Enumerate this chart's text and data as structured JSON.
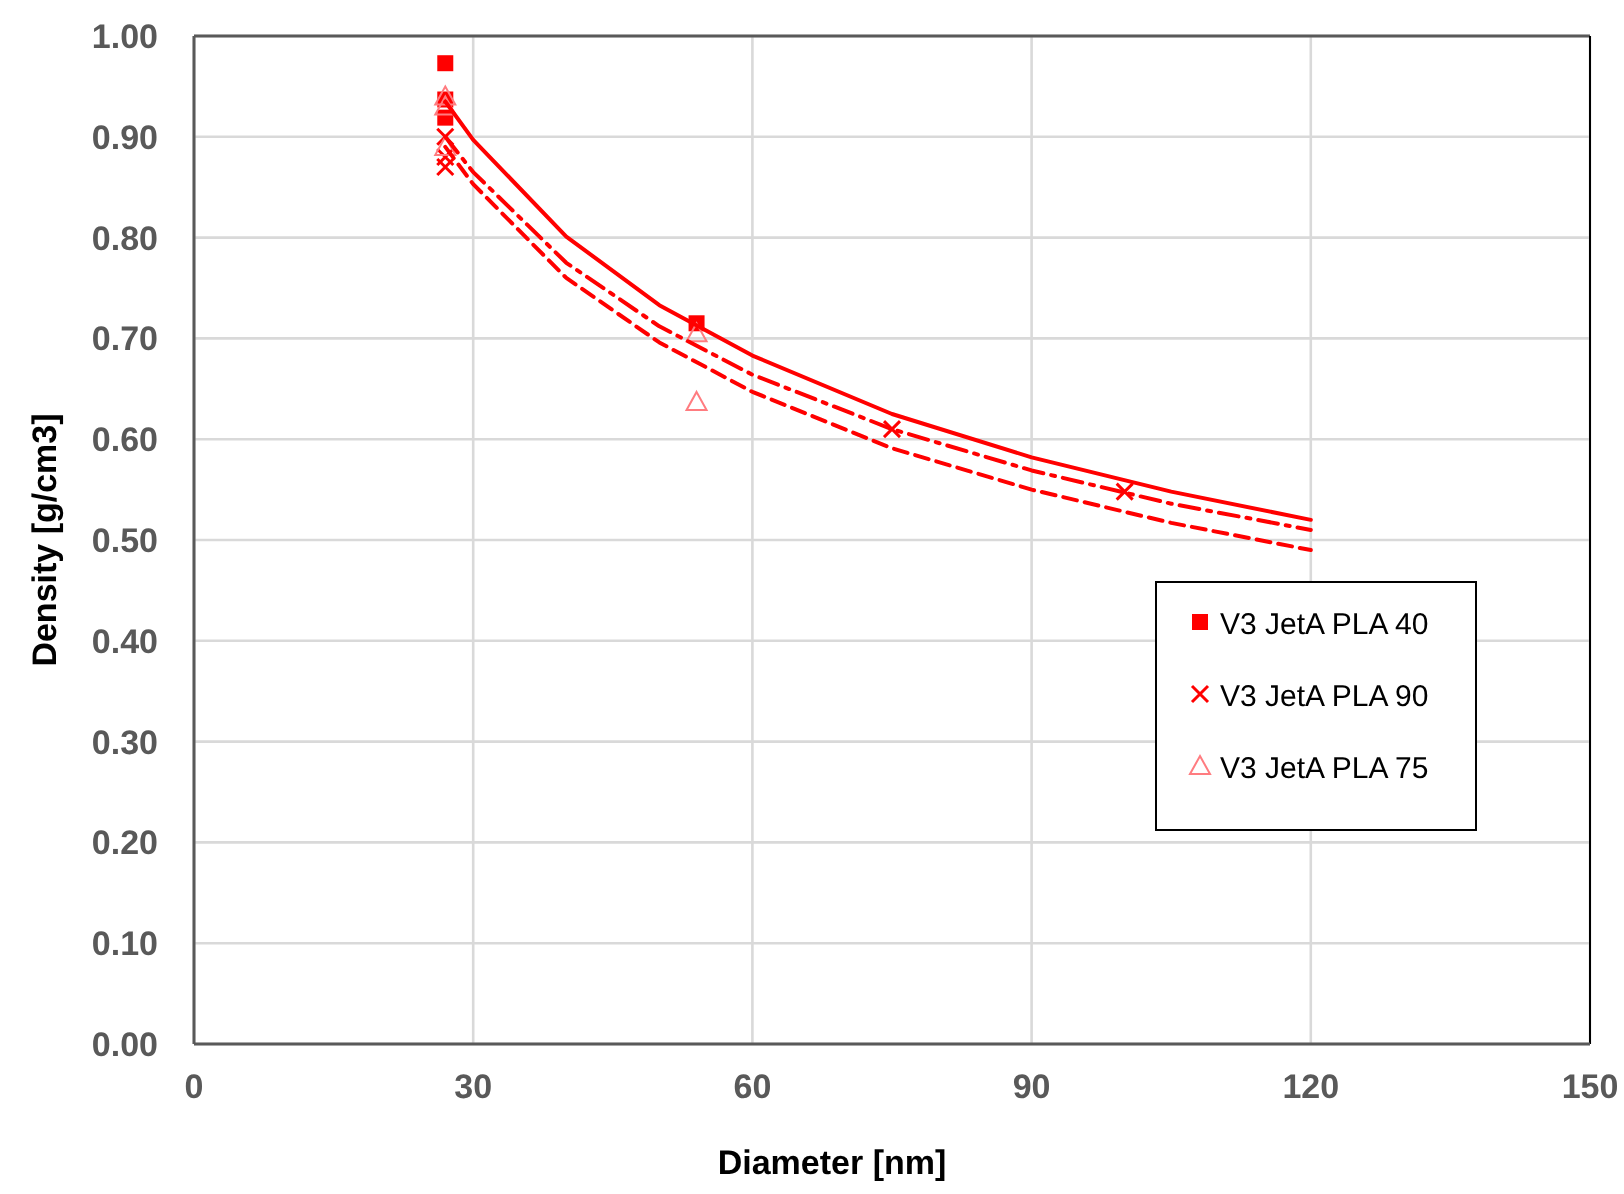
{
  "chart_data": {
    "type": "scatter",
    "xlabel": "Diameter [nm]",
    "ylabel": "Density [g/cm3]",
    "xlim": [
      0,
      150
    ],
    "xticks": [
      0,
      30,
      60,
      90,
      120,
      150
    ],
    "ylim": [
      0,
      1
    ],
    "yticks": [
      {
        "value": 0,
        "label": "0.00"
      },
      {
        "value": 0.1,
        "label": "0.10"
      },
      {
        "value": 0.2,
        "label": "0.20"
      },
      {
        "value": 0.3,
        "label": "0.30"
      },
      {
        "value": 0.4,
        "label": "0.40"
      },
      {
        "value": 0.5,
        "label": "0.50"
      },
      {
        "value": 0.6,
        "label": "0.60"
      },
      {
        "value": 0.7,
        "label": "0.70"
      },
      {
        "value": 0.8,
        "label": "0.80"
      },
      {
        "value": 0.9,
        "label": "0.90"
      },
      {
        "value": 1,
        "label": "1.00"
      }
    ],
    "grid": true,
    "legend": "right",
    "series": [
      {
        "name": "V3 JetA PLA 40",
        "color": "#ff0000",
        "marker": "square",
        "x": [
          27,
          27,
          27,
          54
        ],
        "values": [
          0.973,
          0.937,
          0.919,
          0.715
        ]
      },
      {
        "name": "V3 JetA PLA 90",
        "color": "#ff0000",
        "marker": "cross",
        "x": [
          27,
          27,
          27,
          75,
          100
        ],
        "values": [
          0.9,
          0.88,
          0.87,
          0.61,
          0.548
        ]
      },
      {
        "name": "V3 JetA PLA 75",
        "color": "#ff7c80",
        "marker": "triangle",
        "x": [
          27,
          27,
          27,
          54,
          54
        ],
        "values": [
          0.94,
          0.93,
          0.89,
          0.705,
          0.637
        ]
      },
      {
        "type": "line",
        "color": "#ff0000",
        "line_style": "solid",
        "marker": "none",
        "x": [
          27,
          30,
          40,
          50,
          60,
          75,
          90,
          105,
          120
        ],
        "values": [
          0.935,
          0.897,
          0.801,
          0.733,
          0.683,
          0.625,
          0.582,
          0.548,
          0.52
        ]
      },
      {
        "type": "line",
        "color": "#ff0000",
        "line_style": "dashdot",
        "marker": "none",
        "x": [
          27,
          30,
          40,
          50,
          60,
          75,
          90,
          105,
          120
        ],
        "values": [
          0.9,
          0.865,
          0.775,
          0.712,
          0.664,
          0.61,
          0.569,
          0.536,
          0.51
        ]
      },
      {
        "type": "line",
        "color": "#ff0000",
        "line_style": "dashed",
        "marker": "none",
        "x": [
          27,
          30,
          40,
          50,
          60,
          75,
          90,
          105,
          120
        ],
        "values": [
          0.89,
          0.853,
          0.76,
          0.696,
          0.647,
          0.591,
          0.55,
          0.517,
          0.49
        ]
      }
    ]
  }
}
